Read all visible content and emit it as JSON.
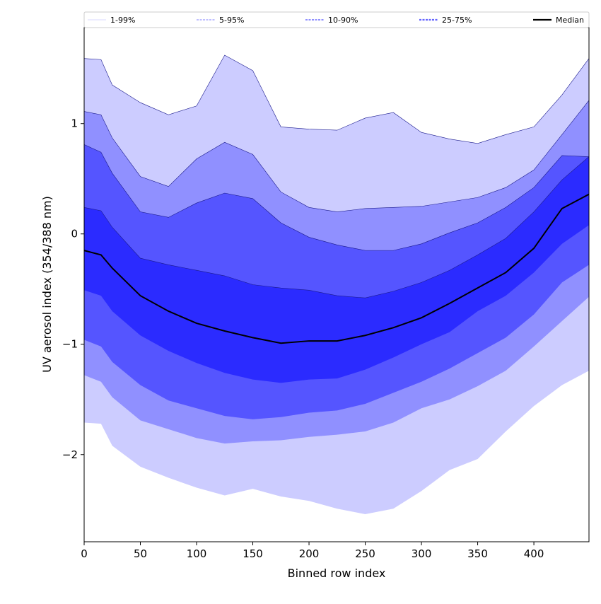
{
  "chart_data": {
    "type": "area",
    "title": "",
    "xlabel": "Binned row index",
    "ylabel": "UV aerosol index (354/388 nm)",
    "xlim": [
      0,
      449
    ],
    "ylim": [
      -2.79,
      1.87
    ],
    "xticks": [
      0,
      50,
      100,
      150,
      200,
      250,
      300,
      350,
      400
    ],
    "yticks": [
      -2,
      -1,
      0,
      1
    ],
    "ytick_labels": [
      "−2",
      "−1",
      "0",
      "1"
    ],
    "grid": false,
    "legend_position": "top (above plot, single row)",
    "x": [
      0,
      15,
      25,
      50,
      75,
      100,
      125,
      150,
      175,
      200,
      225,
      250,
      275,
      300,
      325,
      350,
      375,
      400,
      425,
      449
    ],
    "bands": [
      {
        "name": "1-99%",
        "color": "#ccccff",
        "legend_color": "#ccccff",
        "lower": [
          -1.71,
          -1.72,
          -1.92,
          -2.11,
          -2.21,
          -2.3,
          -2.37,
          -2.31,
          -2.38,
          -2.42,
          -2.49,
          -2.54,
          -2.49,
          -2.33,
          -2.14,
          -2.04,
          -1.79,
          -1.56,
          -1.37,
          -1.24
        ],
        "upper": [
          1.59,
          1.58,
          1.35,
          1.19,
          1.08,
          1.16,
          1.62,
          1.48,
          0.97,
          0.95,
          0.94,
          1.05,
          1.1,
          0.92,
          0.86,
          0.82,
          0.9,
          0.97,
          1.26,
          1.59
        ]
      },
      {
        "name": "5-95%",
        "color": "#9090ff",
        "legend_color": "#9999ff",
        "lower": [
          -1.28,
          -1.34,
          -1.48,
          -1.69,
          -1.77,
          -1.85,
          -1.9,
          -1.88,
          -1.87,
          -1.84,
          -1.82,
          -1.79,
          -1.71,
          -1.58,
          -1.5,
          -1.38,
          -1.24,
          -1.02,
          -0.79,
          -0.57
        ],
        "upper": [
          1.11,
          1.08,
          0.87,
          0.52,
          0.43,
          0.68,
          0.83,
          0.72,
          0.38,
          0.24,
          0.2,
          0.23,
          0.24,
          0.25,
          0.29,
          0.33,
          0.42,
          0.58,
          0.9,
          1.21
        ]
      },
      {
        "name": "10-90%",
        "color": "#5555ff",
        "legend_color": "#8080ff",
        "lower": [
          -0.96,
          -1.02,
          -1.16,
          -1.37,
          -1.51,
          -1.58,
          -1.65,
          -1.68,
          -1.66,
          -1.62,
          -1.6,
          -1.54,
          -1.44,
          -1.34,
          -1.22,
          -1.08,
          -0.94,
          -0.73,
          -0.44,
          -0.28
        ],
        "upper": [
          0.81,
          0.74,
          0.55,
          0.2,
          0.15,
          0.28,
          0.37,
          0.32,
          0.1,
          -0.03,
          -0.1,
          -0.15,
          -0.15,
          -0.09,
          0.01,
          0.1,
          0.24,
          0.42,
          0.71,
          0.7
        ]
      },
      {
        "name": "25-75%",
        "color": "#2b2bff",
        "legend_color": "#6666ff",
        "lower": [
          -0.51,
          -0.56,
          -0.7,
          -0.92,
          -1.06,
          -1.17,
          -1.26,
          -1.32,
          -1.35,
          -1.32,
          -1.31,
          -1.23,
          -1.12,
          -1.0,
          -0.89,
          -0.7,
          -0.56,
          -0.35,
          -0.09,
          0.08
        ],
        "upper": [
          0.24,
          0.21,
          0.06,
          -0.22,
          -0.28,
          -0.33,
          -0.38,
          -0.46,
          -0.49,
          -0.51,
          -0.56,
          -0.58,
          -0.52,
          -0.44,
          -0.33,
          -0.19,
          -0.04,
          0.2,
          0.49,
          0.7
        ]
      }
    ],
    "median": {
      "name": "Median",
      "color": "#000000",
      "values": [
        -0.15,
        -0.19,
        -0.31,
        -0.56,
        -0.7,
        -0.81,
        -0.88,
        -0.94,
        -0.99,
        -0.97,
        -0.97,
        -0.92,
        -0.85,
        -0.76,
        -0.63,
        -0.49,
        -0.35,
        -0.13,
        0.23,
        0.36
      ]
    }
  }
}
